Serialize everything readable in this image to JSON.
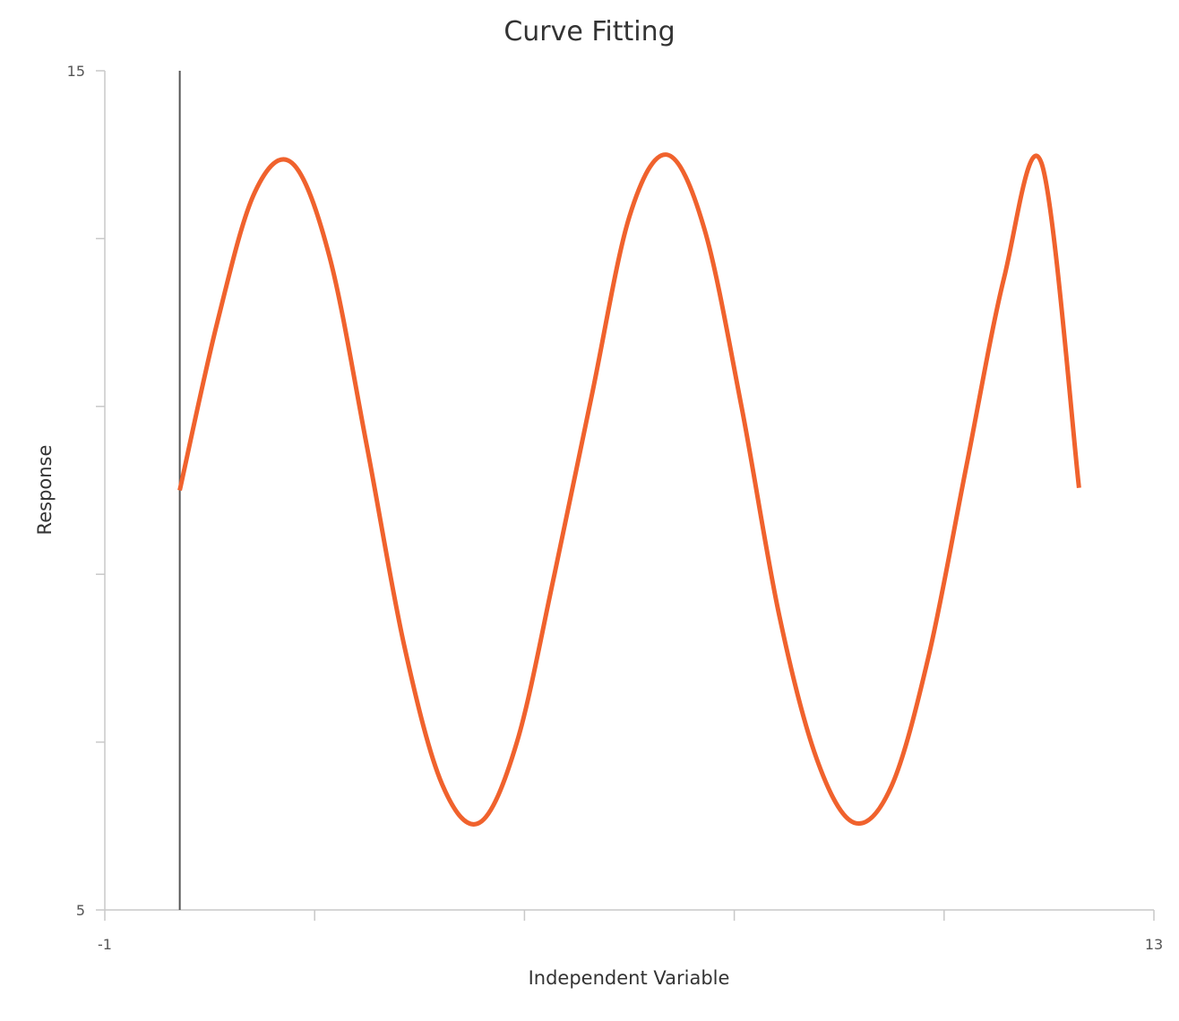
{
  "chart_data": {
    "type": "line",
    "title": "Curve Fitting",
    "xlabel": "Independent Variable",
    "ylabel": "Response",
    "xlim": [
      -1,
      13
    ],
    "ylim": [
      5,
      15
    ],
    "x_tick_labels": [
      "-1",
      "13"
    ],
    "y_tick_labels": [
      "15",
      "5"
    ],
    "x_tick_values": [
      -1,
      1.8,
      4.6,
      7.4,
      10.2,
      13
    ],
    "y_tick_values": [
      5,
      7,
      9,
      11,
      13,
      15
    ],
    "grid": false,
    "reference_line": {
      "x": 0
    },
    "colors": {
      "series": "#f0622d",
      "axis": "#c8c8c8",
      "reference_line": "#555555"
    },
    "series": [
      {
        "x": [
          0,
          0.5,
          1,
          1.5,
          2,
          2.5,
          3,
          3.5,
          4,
          4.5,
          5,
          5.5,
          6,
          6.5,
          7,
          7.5,
          8,
          8.5,
          9,
          9.5,
          10,
          10.5,
          11,
          11.5,
          12
        ],
        "y": [
          10,
          12.0,
          13.55,
          13.9,
          12.78,
          10.51,
          8.13,
          6.5,
          6.04,
          7.0,
          9.0,
          11.14,
          13.26,
          14.0,
          13.12,
          10.98,
          8.51,
          6.8,
          6.04,
          6.48,
          8.05,
          10.3,
          12.53,
          13.9,
          10.03
        ]
      }
    ]
  }
}
